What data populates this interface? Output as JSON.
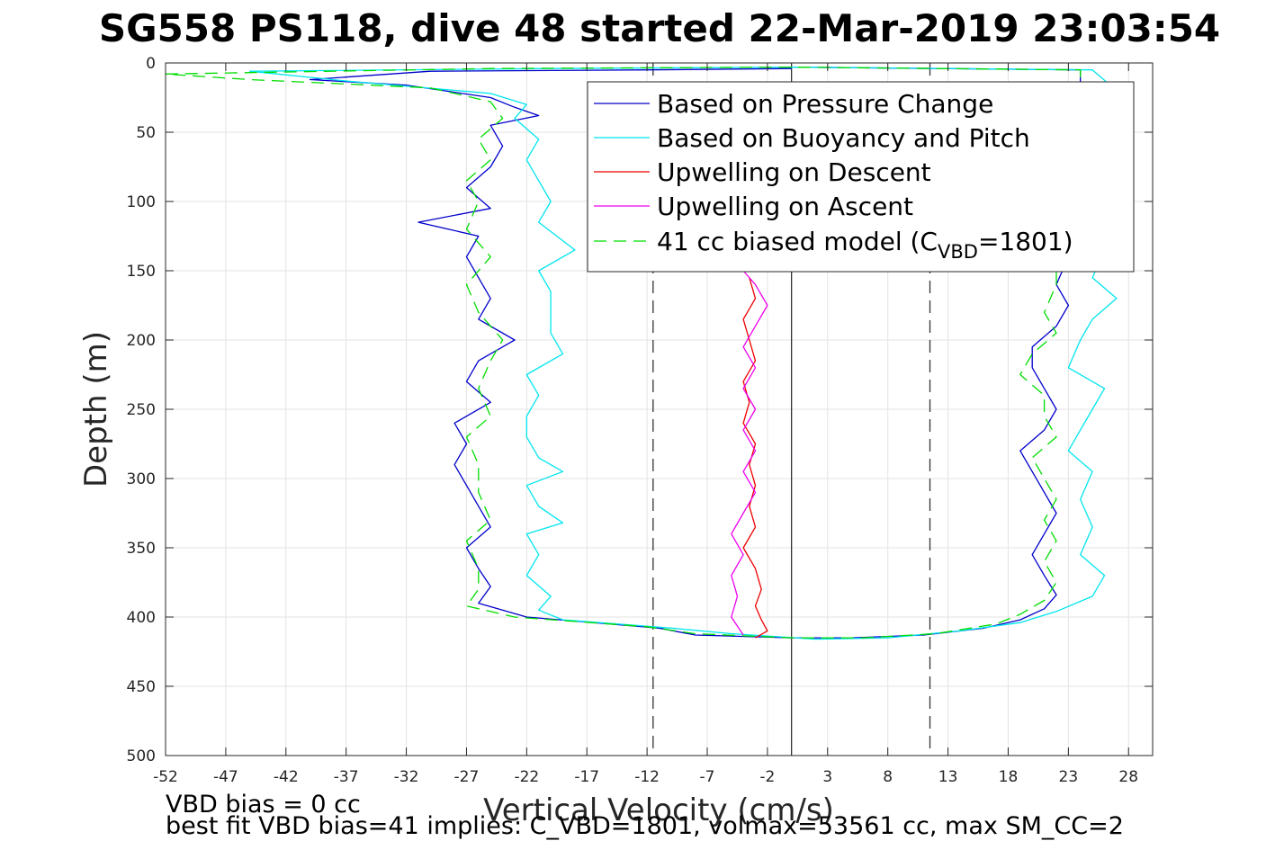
{
  "chart_data": {
    "type": "line",
    "title": "SG558 PS118, dive 48 started 22-Mar-2019 23:03:54",
    "xlabel": "Vertical Velocity (cm/s)",
    "ylabel": "Depth (m)",
    "xlim": [
      -52,
      30
    ],
    "ylim": [
      0,
      500
    ],
    "y_reversed": true,
    "xticks": [
      -52,
      -47,
      -42,
      -37,
      -32,
      -27,
      -22,
      -17,
      -12,
      -7,
      -2,
      3,
      8,
      13,
      18,
      23,
      28
    ],
    "yticks": [
      0,
      50,
      100,
      150,
      200,
      250,
      300,
      350,
      400,
      450,
      500
    ],
    "grid": true,
    "legend_position": "top-right",
    "vertical_lines": [
      {
        "x": -11.5,
        "style": "dashed"
      },
      {
        "x": 0,
        "style": "solid"
      },
      {
        "x": 11.5,
        "style": "dashed"
      }
    ],
    "series": [
      {
        "name": "Based on Pressure Change",
        "color": "#0000cc",
        "style": "solid",
        "points": [
          [
            0,
            4
          ],
          [
            -12,
            5
          ],
          [
            -30,
            6
          ],
          [
            -40,
            12
          ],
          [
            -32,
            16
          ],
          [
            -25,
            25
          ],
          [
            -23,
            32
          ],
          [
            -21,
            38
          ],
          [
            -25,
            45
          ],
          [
            -24,
            60
          ],
          [
            -25,
            75
          ],
          [
            -27,
            90
          ],
          [
            -25,
            105
          ],
          [
            -31,
            115
          ],
          [
            -26,
            125
          ],
          [
            -27,
            140
          ],
          [
            -26,
            155
          ],
          [
            -25,
            170
          ],
          [
            -26,
            185
          ],
          [
            -23,
            200
          ],
          [
            -26,
            215
          ],
          [
            -27,
            230
          ],
          [
            -25,
            245
          ],
          [
            -28,
            260
          ],
          [
            -27,
            275
          ],
          [
            -28,
            290
          ],
          [
            -27,
            305
          ],
          [
            -26,
            320
          ],
          [
            -25,
            335
          ],
          [
            -27,
            350
          ],
          [
            -26,
            365
          ],
          [
            -25,
            378
          ],
          [
            -26,
            390
          ],
          [
            -22,
            400
          ],
          [
            -11,
            408
          ],
          [
            -8,
            413
          ],
          [
            0,
            415
          ],
          [
            5,
            415
          ],
          [
            11,
            413
          ],
          [
            16,
            408
          ],
          [
            19,
            402
          ],
          [
            21,
            394
          ],
          [
            22,
            384
          ],
          [
            21,
            370
          ],
          [
            20,
            355
          ],
          [
            21,
            340
          ],
          [
            22,
            325
          ],
          [
            21,
            310
          ],
          [
            20,
            295
          ],
          [
            19,
            280
          ],
          [
            21,
            265
          ],
          [
            22,
            250
          ],
          [
            21,
            235
          ],
          [
            20,
            220
          ],
          [
            20,
            205
          ],
          [
            22,
            190
          ],
          [
            23,
            175
          ],
          [
            22,
            160
          ],
          [
            23,
            140
          ],
          [
            24,
            120
          ],
          [
            23,
            100
          ],
          [
            23,
            80
          ],
          [
            24,
            60
          ],
          [
            23,
            40
          ],
          [
            24,
            20
          ],
          [
            24,
            5
          ],
          [
            0,
            3
          ]
        ]
      },
      {
        "name": "Based on Buoyancy and Pitch",
        "color": "#00e5ee",
        "style": "solid",
        "points": [
          [
            0,
            3
          ],
          [
            -20,
            4
          ],
          [
            -45,
            6
          ],
          [
            -37,
            13
          ],
          [
            -25,
            22
          ],
          [
            -22,
            30
          ],
          [
            -23,
            40
          ],
          [
            -21,
            55
          ],
          [
            -22,
            70
          ],
          [
            -21,
            85
          ],
          [
            -20,
            100
          ],
          [
            -21,
            115
          ],
          [
            -18,
            135
          ],
          [
            -21,
            150
          ],
          [
            -20,
            165
          ],
          [
            -20,
            180
          ],
          [
            -20,
            195
          ],
          [
            -19,
            210
          ],
          [
            -22,
            225
          ],
          [
            -21,
            240
          ],
          [
            -22,
            255
          ],
          [
            -22,
            270
          ],
          [
            -21,
            285
          ],
          [
            -19,
            295
          ],
          [
            -22,
            305
          ],
          [
            -21,
            320
          ],
          [
            -19,
            332
          ],
          [
            -22,
            340
          ],
          [
            -21,
            355
          ],
          [
            -22,
            370
          ],
          [
            -20,
            385
          ],
          [
            -21,
            395
          ],
          [
            -19,
            402
          ],
          [
            -10,
            408
          ],
          [
            -5,
            412
          ],
          [
            2,
            416
          ],
          [
            8,
            415
          ],
          [
            14,
            410
          ],
          [
            19,
            404
          ],
          [
            22,
            396
          ],
          [
            25,
            385
          ],
          [
            26,
            370
          ],
          [
            24,
            355
          ],
          [
            25,
            335
          ],
          [
            24,
            315
          ],
          [
            25,
            295
          ],
          [
            23,
            280
          ],
          [
            24,
            265
          ],
          [
            25,
            250
          ],
          [
            26,
            235
          ],
          [
            23,
            220
          ],
          [
            24,
            200
          ],
          [
            25,
            185
          ],
          [
            27,
            170
          ],
          [
            25,
            155
          ],
          [
            26,
            135
          ],
          [
            27,
            115
          ],
          [
            27,
            90
          ],
          [
            28,
            75
          ],
          [
            26,
            55
          ],
          [
            26,
            35
          ],
          [
            27,
            20
          ],
          [
            25,
            5
          ],
          [
            0,
            3
          ]
        ]
      },
      {
        "name": "Upwelling on Descent",
        "color": "#ee0000",
        "style": "solid",
        "points": [
          [
            -3.5,
            155
          ],
          [
            -3,
            170
          ],
          [
            -4,
            185
          ],
          [
            -3.5,
            200
          ],
          [
            -3,
            215
          ],
          [
            -4,
            230
          ],
          [
            -3.5,
            245
          ],
          [
            -4,
            260
          ],
          [
            -3,
            275
          ],
          [
            -3.5,
            290
          ],
          [
            -3,
            305
          ],
          [
            -3.5,
            320
          ],
          [
            -3,
            335
          ],
          [
            -4,
            350
          ],
          [
            -3,
            365
          ],
          [
            -2.5,
            380
          ],
          [
            -3,
            392
          ],
          [
            -2.5,
            402
          ],
          [
            -2,
            410
          ],
          [
            -3,
            415
          ]
        ]
      },
      {
        "name": "Upwelling on Ascent",
        "color": "#ee00ee",
        "style": "solid",
        "points": [
          [
            -4,
            413
          ],
          [
            -5,
            400
          ],
          [
            -4.5,
            385
          ],
          [
            -5,
            370
          ],
          [
            -4,
            355
          ],
          [
            -5,
            340
          ],
          [
            -4,
            325
          ],
          [
            -3,
            310
          ],
          [
            -4,
            295
          ],
          [
            -3,
            280
          ],
          [
            -4,
            265
          ],
          [
            -3,
            250
          ],
          [
            -4,
            235
          ],
          [
            -3,
            220
          ],
          [
            -4,
            205
          ],
          [
            -3,
            190
          ],
          [
            -2,
            175
          ],
          [
            -3,
            160
          ],
          [
            -4,
            150
          ]
        ]
      },
      {
        "name": "41 cc biased model (C_VBD=1801)",
        "color": "#00dd00",
        "style": "dashed",
        "points": [
          [
            0,
            3
          ],
          [
            -25,
            4
          ],
          [
            -52,
            8
          ],
          [
            -45,
            12
          ],
          [
            -30,
            18
          ],
          [
            -25,
            28
          ],
          [
            -24,
            40
          ],
          [
            -26,
            55
          ],
          [
            -25,
            70
          ],
          [
            -27,
            85
          ],
          [
            -26,
            100
          ],
          [
            -27,
            120
          ],
          [
            -25,
            140
          ],
          [
            -27,
            160
          ],
          [
            -26,
            180
          ],
          [
            -24,
            200
          ],
          [
            -25,
            215
          ],
          [
            -26,
            235
          ],
          [
            -25,
            255
          ],
          [
            -27,
            270
          ],
          [
            -26,
            290
          ],
          [
            -26,
            310
          ],
          [
            -25,
            330
          ],
          [
            -27,
            345
          ],
          [
            -26,
            365
          ],
          [
            -26,
            380
          ],
          [
            -27,
            392
          ],
          [
            -23,
            400
          ],
          [
            -12,
            407
          ],
          [
            -8,
            412
          ],
          [
            0,
            415
          ],
          [
            6,
            415
          ],
          [
            12,
            412
          ],
          [
            17,
            405
          ],
          [
            19,
            398
          ],
          [
            21,
            388
          ],
          [
            22,
            375
          ],
          [
            21,
            360
          ],
          [
            22,
            345
          ],
          [
            21,
            330
          ],
          [
            22,
            315
          ],
          [
            21,
            300
          ],
          [
            20,
            285
          ],
          [
            22,
            270
          ],
          [
            21,
            255
          ],
          [
            21,
            240
          ],
          [
            19,
            225
          ],
          [
            20,
            210
          ],
          [
            22,
            195
          ],
          [
            21,
            180
          ],
          [
            22,
            160
          ],
          [
            22,
            140
          ],
          [
            23,
            120
          ],
          [
            22,
            100
          ],
          [
            23,
            80
          ],
          [
            23,
            60
          ],
          [
            23,
            40
          ],
          [
            24,
            20
          ],
          [
            24,
            5
          ],
          [
            0,
            3
          ]
        ]
      }
    ]
  },
  "legend": {
    "items": [
      {
        "label": "Based on Pressure Change",
        "color": "#0000cc",
        "dash": ""
      },
      {
        "label": "Based on Buoyancy and Pitch",
        "color": "#00e5ee",
        "dash": ""
      },
      {
        "label": "Upwelling on Descent",
        "color": "#ee0000",
        "dash": ""
      },
      {
        "label": "Upwelling on Ascent",
        "color": "#ee00ee",
        "dash": ""
      },
      {
        "label_main": "41 cc biased model (C",
        "label_sub": "VBD",
        "label_tail": "=1801)",
        "color": "#00dd00",
        "dash": "14,8"
      }
    ]
  },
  "footer": {
    "line1": "VBD bias = 0 cc",
    "line2": "best fit VBD bias=41 implies: C_VBD=1801, volmax=53561 cc, max SM_CC=2"
  }
}
